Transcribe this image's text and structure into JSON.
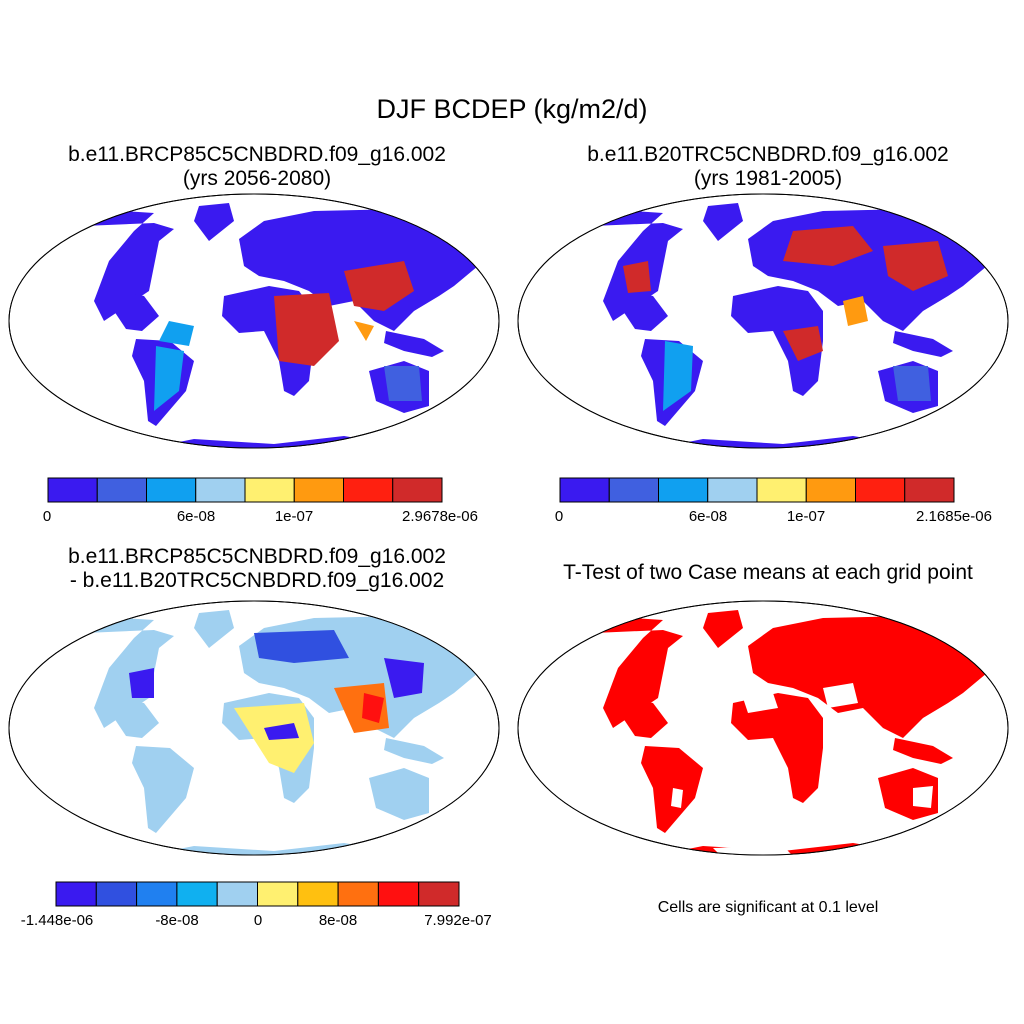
{
  "main_title": "DJF BCDEP (kg/m2/d)",
  "panels": [
    {
      "title_line1": "b.e11.BRCP85C5CNBDRD.f09_g16.002",
      "title_line2": "(yrs 2056-2080)",
      "colorbar": {
        "colors": [
          "#3a1af0",
          "#4060e0",
          "#10a0f0",
          "#a0d0f0",
          "#fff070",
          "#ff9a10",
          "#ff2010",
          "#d02a2a"
        ],
        "labels": [
          "0",
          "6e-08",
          "1e-07",
          "2.9678e-06"
        ]
      }
    },
    {
      "title_line1": "b.e11.B20TRC5CNBDRD.f09_g16.002",
      "title_line2": "(yrs 1981-2005)",
      "colorbar": {
        "colors": [
          "#3a1af0",
          "#4060e0",
          "#10a0f0",
          "#a0d0f0",
          "#fff070",
          "#ff9a10",
          "#ff2010",
          "#d02a2a"
        ],
        "labels": [
          "0",
          "6e-08",
          "1e-07",
          "2.1685e-06"
        ]
      }
    },
    {
      "title_line1": "b.e11.BRCP85C5CNBDRD.f09_g16.002",
      "title_line2": "- b.e11.B20TRC5CNBDRD.f09_g16.002",
      "colorbar": {
        "colors": [
          "#3a1af0",
          "#3050e0",
          "#2080f0",
          "#10b0f0",
          "#a0d0f0",
          "#fff070",
          "#ffc010",
          "#ff7010",
          "#ff1010",
          "#d02a2a"
        ],
        "labels": [
          "-1.448e-06",
          "-8e-08",
          "0",
          "8e-08",
          "7.992e-07"
        ]
      }
    },
    {
      "title_line1": "T-Test of two Case means at each grid point",
      "footnote": "Cells are significant at 0.1 level",
      "significant_color": "#ff0000"
    }
  ]
}
